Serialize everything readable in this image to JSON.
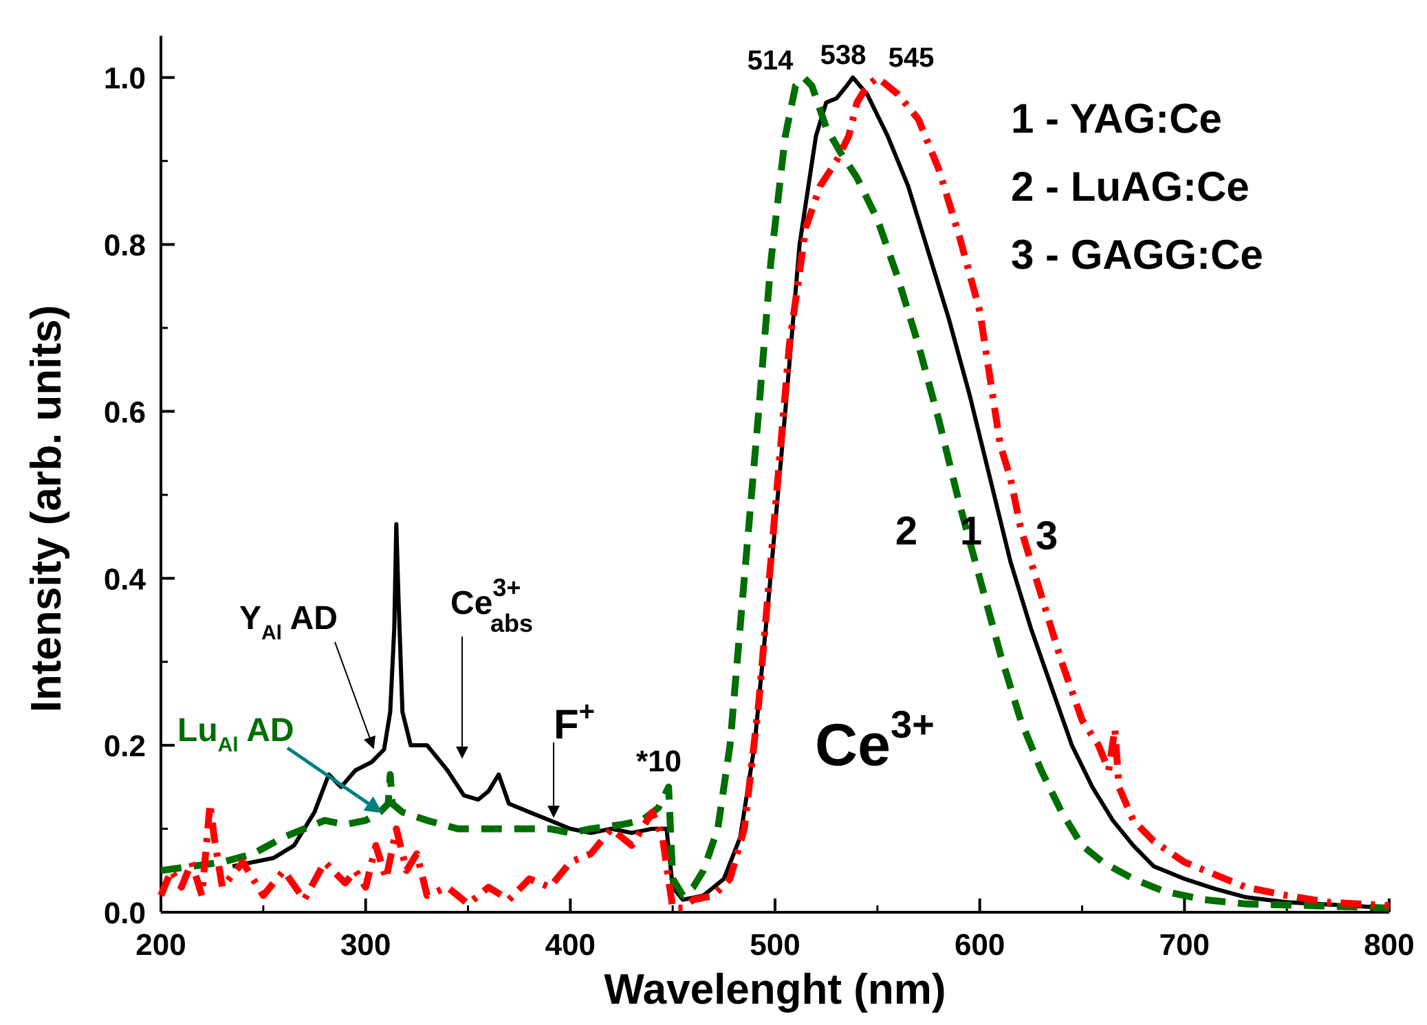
{
  "chart_data": {
    "type": "line",
    "xlabel": "Wavelenght (nm)",
    "ylabel": "Intensity (arb. units)",
    "xlim": [
      200,
      800
    ],
    "ylim": [
      0,
      1.05
    ],
    "x_ticks": [
      "200",
      "300",
      "400",
      "500",
      "600",
      "700",
      "800"
    ],
    "y_ticks": [
      "0.0",
      "0.2",
      "0.4",
      "0.6",
      "0.8",
      "1.0"
    ],
    "legend": [
      "1 - YAG:Ce",
      "2 - LuAG:Ce",
      "3 - GAGG:Ce"
    ],
    "series": [
      {
        "name": "1 - YAG:Ce",
        "color": "#000000",
        "dash": "solid",
        "points": [
          [
            235,
            0.055
          ],
          [
            245,
            0.06
          ],
          [
            255,
            0.065
          ],
          [
            265,
            0.08
          ],
          [
            275,
            0.12
          ],
          [
            282,
            0.165
          ],
          [
            288,
            0.15
          ],
          [
            295,
            0.17
          ],
          [
            303,
            0.18
          ],
          [
            309,
            0.195
          ],
          [
            312,
            0.24
          ],
          [
            314,
            0.34
          ],
          [
            315,
            0.465
          ],
          [
            316,
            0.38
          ],
          [
            318,
            0.24
          ],
          [
            322,
            0.2
          ],
          [
            330,
            0.2
          ],
          [
            340,
            0.17
          ],
          [
            348,
            0.14
          ],
          [
            355,
            0.135
          ],
          [
            360,
            0.145
          ],
          [
            365,
            0.165
          ],
          [
            370,
            0.13
          ],
          [
            380,
            0.12
          ],
          [
            390,
            0.11
          ],
          [
            400,
            0.1
          ],
          [
            410,
            0.095
          ],
          [
            420,
            0.1
          ],
          [
            430,
            0.095
          ],
          [
            440,
            0.1
          ],
          [
            447,
            0.1
          ],
          [
            450,
            0.03
          ],
          [
            455,
            0.015
          ],
          [
            465,
            0.02
          ],
          [
            475,
            0.04
          ],
          [
            483,
            0.09
          ],
          [
            490,
            0.2
          ],
          [
            497,
            0.38
          ],
          [
            505,
            0.6
          ],
          [
            512,
            0.8
          ],
          [
            520,
            0.93
          ],
          [
            525,
            0.97
          ],
          [
            530,
            0.975
          ],
          [
            535,
            0.99
          ],
          [
            538,
            1.0
          ],
          [
            545,
            0.98
          ],
          [
            555,
            0.93
          ],
          [
            565,
            0.87
          ],
          [
            575,
            0.79
          ],
          [
            585,
            0.71
          ],
          [
            595,
            0.62
          ],
          [
            605,
            0.52
          ],
          [
            615,
            0.42
          ],
          [
            625,
            0.34
          ],
          [
            635,
            0.27
          ],
          [
            645,
            0.2
          ],
          [
            655,
            0.15
          ],
          [
            665,
            0.11
          ],
          [
            675,
            0.08
          ],
          [
            685,
            0.055
          ],
          [
            700,
            0.04
          ],
          [
            715,
            0.028
          ],
          [
            730,
            0.018
          ],
          [
            750,
            0.012
          ],
          [
            780,
            0.008
          ],
          [
            800,
            0.005
          ]
        ]
      },
      {
        "name": "2 - LuAG:Ce",
        "color": "#006e00",
        "dash": "dashed",
        "points": [
          [
            200,
            0.05
          ],
          [
            215,
            0.055
          ],
          [
            230,
            0.06
          ],
          [
            245,
            0.07
          ],
          [
            260,
            0.09
          ],
          [
            270,
            0.1
          ],
          [
            280,
            0.11
          ],
          [
            290,
            0.105
          ],
          [
            300,
            0.11
          ],
          [
            307,
            0.12
          ],
          [
            311,
            0.13
          ],
          [
            312,
            0.165
          ],
          [
            313,
            0.13
          ],
          [
            318,
            0.12
          ],
          [
            330,
            0.11
          ],
          [
            345,
            0.1
          ],
          [
            360,
            0.1
          ],
          [
            375,
            0.1
          ],
          [
            390,
            0.1
          ],
          [
            400,
            0.095
          ],
          [
            410,
            0.1
          ],
          [
            425,
            0.105
          ],
          [
            435,
            0.11
          ],
          [
            443,
            0.125
          ],
          [
            448,
            0.15
          ],
          [
            450,
            0.04
          ],
          [
            455,
            0.02
          ],
          [
            460,
            0.03
          ],
          [
            465,
            0.05
          ],
          [
            472,
            0.1
          ],
          [
            478,
            0.2
          ],
          [
            485,
            0.4
          ],
          [
            492,
            0.6
          ],
          [
            498,
            0.78
          ],
          [
            505,
            0.93
          ],
          [
            510,
            0.99
          ],
          [
            514,
            1.0
          ],
          [
            518,
            0.99
          ],
          [
            525,
            0.94
          ],
          [
            532,
            0.91
          ],
          [
            540,
            0.88
          ],
          [
            550,
            0.83
          ],
          [
            560,
            0.76
          ],
          [
            570,
            0.68
          ],
          [
            580,
            0.59
          ],
          [
            590,
            0.49
          ],
          [
            600,
            0.4
          ],
          [
            610,
            0.31
          ],
          [
            620,
            0.23
          ],
          [
            630,
            0.17
          ],
          [
            640,
            0.12
          ],
          [
            650,
            0.08
          ],
          [
            660,
            0.06
          ],
          [
            675,
            0.04
          ],
          [
            690,
            0.025
          ],
          [
            710,
            0.015
          ],
          [
            730,
            0.01
          ],
          [
            760,
            0.008
          ],
          [
            800,
            0.005
          ]
        ]
      },
      {
        "name": "3 - GAGG:Ce",
        "color": "#ff0000",
        "dash": "dash-dot",
        "points": [
          [
            200,
            0.02
          ],
          [
            205,
            0.05
          ],
          [
            210,
            0.03
          ],
          [
            215,
            0.06
          ],
          [
            220,
            0.02
          ],
          [
            224,
            0.13
          ],
          [
            226,
            0.09
          ],
          [
            230,
            0.03
          ],
          [
            240,
            0.06
          ],
          [
            250,
            0.02
          ],
          [
            260,
            0.05
          ],
          [
            270,
            0.015
          ],
          [
            280,
            0.06
          ],
          [
            290,
            0.035
          ],
          [
            295,
            0.05
          ],
          [
            300,
            0.03
          ],
          [
            305,
            0.08
          ],
          [
            310,
            0.04
          ],
          [
            315,
            0.1
          ],
          [
            320,
            0.05
          ],
          [
            325,
            0.07
          ],
          [
            330,
            0.02
          ],
          [
            340,
            0.03
          ],
          [
            350,
            0.01
          ],
          [
            360,
            0.03
          ],
          [
            370,
            0.015
          ],
          [
            380,
            0.04
          ],
          [
            390,
            0.03
          ],
          [
            400,
            0.06
          ],
          [
            410,
            0.07
          ],
          [
            420,
            0.1
          ],
          [
            430,
            0.08
          ],
          [
            440,
            0.12
          ],
          [
            445,
            0.09
          ],
          [
            450,
            0.005
          ],
          [
            455,
            0.005
          ],
          [
            460,
            0.015
          ],
          [
            470,
            0.02
          ],
          [
            478,
            0.04
          ],
          [
            485,
            0.1
          ],
          [
            492,
            0.25
          ],
          [
            500,
            0.48
          ],
          [
            507,
            0.68
          ],
          [
            515,
            0.82
          ],
          [
            522,
            0.87
          ],
          [
            530,
            0.9
          ],
          [
            536,
            0.93
          ],
          [
            540,
            0.97
          ],
          [
            545,
            0.99
          ],
          [
            550,
            1.0
          ],
          [
            560,
            0.98
          ],
          [
            570,
            0.95
          ],
          [
            580,
            0.89
          ],
          [
            590,
            0.81
          ],
          [
            600,
            0.72
          ],
          [
            605,
            0.64
          ],
          [
            610,
            0.56
          ],
          [
            615,
            0.52
          ],
          [
            620,
            0.46
          ],
          [
            630,
            0.38
          ],
          [
            640,
            0.3
          ],
          [
            650,
            0.23
          ],
          [
            658,
            0.2
          ],
          [
            663,
            0.17
          ],
          [
            666,
            0.22
          ],
          [
            668,
            0.15
          ],
          [
            675,
            0.11
          ],
          [
            685,
            0.085
          ],
          [
            700,
            0.06
          ],
          [
            715,
            0.045
          ],
          [
            730,
            0.03
          ],
          [
            750,
            0.02
          ],
          [
            770,
            0.012
          ],
          [
            800,
            0.008
          ]
        ]
      }
    ],
    "annotations": {
      "peak_514": "514",
      "peak_538": "538",
      "peak_545": "545",
      "yal_main": "Y",
      "yal_sub": "Al",
      "yal_rest": " AD",
      "lual_main": "Lu",
      "lual_sub": "Al",
      "lual_rest": " AD",
      "ce_abs_main": "Ce",
      "ce_abs_sup": "3+",
      "ce_abs_sub": "abs",
      "fplus_main": "F",
      "fplus_sup": "+",
      "scale_factor": "*10",
      "ce_emission_main": "Ce",
      "ce_emission_sup": "3+",
      "curve_label_2": "2",
      "curve_label_1": "1",
      "curve_label_3": "3"
    },
    "colors": {
      "annotation_green": "#006e00",
      "arrow_teal": "#008080"
    }
  }
}
